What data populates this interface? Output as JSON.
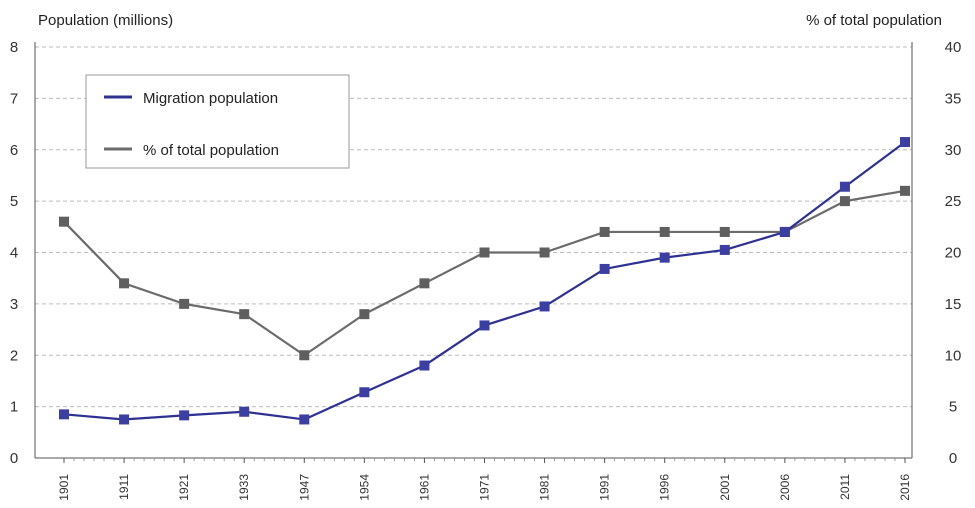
{
  "chart_data": {
    "type": "line",
    "title": "",
    "ylabel_left": "Population (millions)",
    "ylabel_right": "% of total population",
    "xlabel": "",
    "categories": [
      "1901",
      "1911",
      "1921",
      "1933",
      "1947",
      "1954",
      "1961",
      "1971",
      "1981",
      "1991",
      "1996",
      "2001",
      "2006",
      "2011",
      "2016"
    ],
    "y_left": {
      "min": 0,
      "max": 8,
      "ticks": [
        "0",
        "1",
        "2",
        "3",
        "4",
        "5",
        "6",
        "7",
        "8"
      ]
    },
    "y_right": {
      "min": 0,
      "max": 40,
      "ticks": [
        "0",
        "5",
        "10",
        "15",
        "20",
        "25",
        "30",
        "35",
        "40"
      ]
    },
    "grid": true,
    "legend_position": "top-left",
    "series": [
      {
        "name": "Migration population",
        "axis": "left",
        "color": "#2e3192",
        "marker_color": "#3b3fa0",
        "values": [
          0.85,
          0.75,
          0.83,
          0.9,
          0.75,
          1.28,
          1.8,
          2.58,
          2.95,
          3.68,
          3.9,
          4.05,
          4.4,
          5.28,
          6.15
        ]
      },
      {
        "name": "% of total population",
        "axis": "right",
        "color": "#6b6b6b",
        "marker_color": "#5f5f5f",
        "values": [
          23,
          17,
          15,
          14,
          10,
          14,
          17,
          20,
          20,
          22,
          22,
          22,
          22,
          25,
          26
        ]
      }
    ]
  }
}
